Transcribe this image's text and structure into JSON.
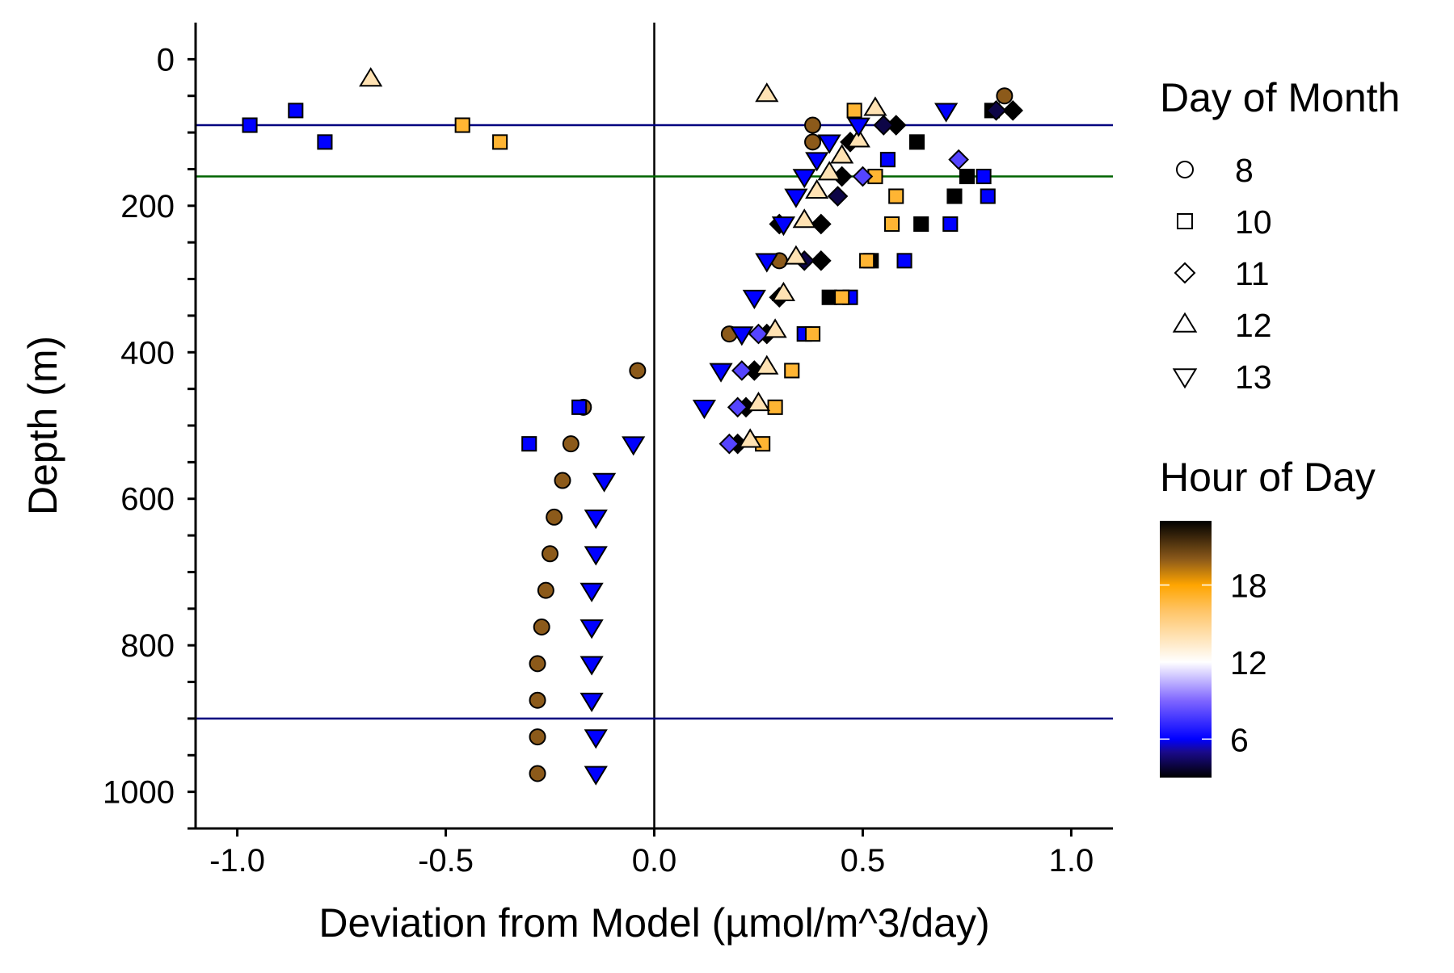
{
  "chart_data": {
    "type": "scatter",
    "xlabel": "Deviation from Model (µmol/m^3/day)",
    "ylabel": "Depth (m)",
    "xlim": [
      -1.1,
      1.1
    ],
    "ylim": [
      1050,
      -50
    ],
    "y_reversed": true,
    "x_ticks": [
      -1.0,
      -0.5,
      0.0,
      0.5,
      1.0
    ],
    "x_tick_labels": [
      "-1.0",
      "-0.5",
      "0.0",
      "0.5",
      "1.0"
    ],
    "y_ticks": [
      0,
      200,
      400,
      600,
      800,
      1000
    ],
    "y_tick_labels": [
      "0",
      "200",
      "400",
      "600",
      "800",
      "1000"
    ],
    "vertical_line": {
      "x": 0.0,
      "color": "#000000"
    },
    "horizontal_lines": [
      {
        "y": 90,
        "color": "#00007f"
      },
      {
        "y": 160,
        "color": "#006400"
      },
      {
        "y": 900,
        "color": "#00007f"
      }
    ],
    "shape_legend": {
      "title": "Day of Month",
      "entries": [
        {
          "label": "8",
          "shape": "circle"
        },
        {
          "label": "10",
          "shape": "square"
        },
        {
          "label": "11",
          "shape": "diamond"
        },
        {
          "label": "12",
          "shape": "triangle-up"
        },
        {
          "label": "13",
          "shape": "triangle-down"
        }
      ]
    },
    "color_legend": {
      "title": "Hour of Day",
      "ticks": [
        {
          "label": "18",
          "value": 18
        },
        {
          "label": "12",
          "value": 12
        },
        {
          "label": "6",
          "value": 6
        }
      ],
      "range": [
        3,
        23
      ],
      "gradient_stops": [
        {
          "value": 3,
          "color": "#000000"
        },
        {
          "value": 5,
          "color": "#1a0a8c"
        },
        {
          "value": 6,
          "color": "#0000ff"
        },
        {
          "value": 9,
          "color": "#7f66ff"
        },
        {
          "value": 12,
          "color": "#ffffff"
        },
        {
          "value": 16,
          "color": "#ffc466"
        },
        {
          "value": 18,
          "color": "#ffa500"
        },
        {
          "value": 20,
          "color": "#8c5a1a"
        },
        {
          "value": 23,
          "color": "#000000"
        }
      ]
    },
    "series": [
      {
        "name": "8",
        "shape": "circle",
        "points": [
          {
            "x": 0.84,
            "y": 50,
            "hour": 20
          },
          {
            "x": 0.38,
            "y": 90,
            "hour": 20
          },
          {
            "x": 0.38,
            "y": 113,
            "hour": 20
          },
          {
            "x": -0.04,
            "y": 425,
            "hour": 20
          },
          {
            "x": -0.17,
            "y": 475,
            "hour": 20
          },
          {
            "x": -0.2,
            "y": 525,
            "hour": 20
          },
          {
            "x": -0.22,
            "y": 575,
            "hour": 20
          },
          {
            "x": -0.24,
            "y": 625,
            "hour": 20
          },
          {
            "x": -0.25,
            "y": 675,
            "hour": 20
          },
          {
            "x": -0.26,
            "y": 725,
            "hour": 20
          },
          {
            "x": -0.27,
            "y": 775,
            "hour": 20
          },
          {
            "x": -0.28,
            "y": 825,
            "hour": 20
          },
          {
            "x": -0.28,
            "y": 875,
            "hour": 20
          },
          {
            "x": -0.28,
            "y": 925,
            "hour": 20
          },
          {
            "x": -0.28,
            "y": 975,
            "hour": 20
          },
          {
            "x": 0.18,
            "y": 375,
            "hour": 20
          },
          {
            "x": 0.3,
            "y": 275,
            "hour": 20
          }
        ]
      },
      {
        "name": "10",
        "shape": "square",
        "points": [
          {
            "x": -0.97,
            "y": 90,
            "hour": 6
          },
          {
            "x": -0.86,
            "y": 70,
            "hour": 6
          },
          {
            "x": -0.79,
            "y": 113,
            "hour": 6
          },
          {
            "x": -0.46,
            "y": 90,
            "hour": 17
          },
          {
            "x": -0.37,
            "y": 113,
            "hour": 17
          },
          {
            "x": 0.48,
            "y": 70,
            "hour": 17
          },
          {
            "x": 0.53,
            "y": 160,
            "hour": 17
          },
          {
            "x": 0.56,
            "y": 137,
            "hour": 6
          },
          {
            "x": 0.58,
            "y": 187,
            "hour": 17
          },
          {
            "x": 0.57,
            "y": 225,
            "hour": 17
          },
          {
            "x": 0.63,
            "y": 113,
            "hour": 23
          },
          {
            "x": 0.64,
            "y": 225,
            "hour": 23
          },
          {
            "x": 0.72,
            "y": 187,
            "hour": 23
          },
          {
            "x": 0.71,
            "y": 225,
            "hour": 6
          },
          {
            "x": 0.75,
            "y": 160,
            "hour": 23
          },
          {
            "x": 0.79,
            "y": 160,
            "hour": 6
          },
          {
            "x": 0.8,
            "y": 187,
            "hour": 6
          },
          {
            "x": 0.81,
            "y": 70,
            "hour": 23
          },
          {
            "x": 0.52,
            "y": 275,
            "hour": 23
          },
          {
            "x": 0.51,
            "y": 275,
            "hour": 17
          },
          {
            "x": 0.6,
            "y": 275,
            "hour": 6
          },
          {
            "x": 0.42,
            "y": 325,
            "hour": 23
          },
          {
            "x": 0.47,
            "y": 325,
            "hour": 6
          },
          {
            "x": 0.45,
            "y": 325,
            "hour": 17
          },
          {
            "x": 0.36,
            "y": 375,
            "hour": 6
          },
          {
            "x": 0.38,
            "y": 375,
            "hour": 17
          },
          {
            "x": 0.33,
            "y": 425,
            "hour": 17
          },
          {
            "x": 0.29,
            "y": 475,
            "hour": 17
          },
          {
            "x": 0.26,
            "y": 525,
            "hour": 17
          },
          {
            "x": -0.18,
            "y": 475,
            "hour": 6
          },
          {
            "x": -0.3,
            "y": 525,
            "hour": 6
          }
        ]
      },
      {
        "name": "11",
        "shape": "diamond",
        "points": [
          {
            "x": 0.86,
            "y": 70,
            "hour": 23
          },
          {
            "x": 0.82,
            "y": 70,
            "hour": 4
          },
          {
            "x": 0.73,
            "y": 137,
            "hour": 8
          },
          {
            "x": 0.58,
            "y": 90,
            "hour": 23
          },
          {
            "x": 0.55,
            "y": 90,
            "hour": 4
          },
          {
            "x": 0.5,
            "y": 160,
            "hour": 8
          },
          {
            "x": 0.47,
            "y": 113,
            "hour": 23
          },
          {
            "x": 0.44,
            "y": 187,
            "hour": 4
          },
          {
            "x": 0.45,
            "y": 160,
            "hour": 23
          },
          {
            "x": 0.4,
            "y": 225,
            "hour": 23
          },
          {
            "x": 0.4,
            "y": 275,
            "hour": 23
          },
          {
            "x": 0.36,
            "y": 275,
            "hour": 4
          },
          {
            "x": 0.3,
            "y": 325,
            "hour": 23
          },
          {
            "x": 0.27,
            "y": 375,
            "hour": 23
          },
          {
            "x": 0.25,
            "y": 375,
            "hour": 8
          },
          {
            "x": 0.24,
            "y": 425,
            "hour": 23
          },
          {
            "x": 0.21,
            "y": 425,
            "hour": 8
          },
          {
            "x": 0.22,
            "y": 475,
            "hour": 23
          },
          {
            "x": 0.2,
            "y": 475,
            "hour": 8
          },
          {
            "x": 0.2,
            "y": 525,
            "hour": 23
          },
          {
            "x": 0.18,
            "y": 525,
            "hour": 8
          },
          {
            "x": 0.3,
            "y": 225,
            "hour": 23
          }
        ]
      },
      {
        "name": "12",
        "shape": "triangle-up",
        "points": [
          {
            "x": -0.68,
            "y": 27,
            "hour": 14
          },
          {
            "x": 0.27,
            "y": 48,
            "hour": 14
          },
          {
            "x": 0.53,
            "y": 67,
            "hour": 14
          },
          {
            "x": 0.49,
            "y": 110,
            "hour": 14
          },
          {
            "x": 0.45,
            "y": 132,
            "hour": 14
          },
          {
            "x": 0.42,
            "y": 155,
            "hour": 14
          },
          {
            "x": 0.39,
            "y": 180,
            "hour": 14
          },
          {
            "x": 0.36,
            "y": 220,
            "hour": 14
          },
          {
            "x": 0.34,
            "y": 270,
            "hour": 14
          },
          {
            "x": 0.31,
            "y": 320,
            "hour": 14
          },
          {
            "x": 0.29,
            "y": 370,
            "hour": 14
          },
          {
            "x": 0.27,
            "y": 420,
            "hour": 14
          },
          {
            "x": 0.25,
            "y": 470,
            "hour": 14
          },
          {
            "x": 0.23,
            "y": 520,
            "hour": 14
          }
        ]
      },
      {
        "name": "13",
        "shape": "triangle-down",
        "points": [
          {
            "x": 0.7,
            "y": 70,
            "hour": 6
          },
          {
            "x": 0.49,
            "y": 90,
            "hour": 6
          },
          {
            "x": 0.42,
            "y": 113,
            "hour": 6
          },
          {
            "x": 0.39,
            "y": 137,
            "hour": 6
          },
          {
            "x": 0.36,
            "y": 160,
            "hour": 6
          },
          {
            "x": 0.34,
            "y": 187,
            "hour": 6
          },
          {
            "x": 0.31,
            "y": 225,
            "hour": 6
          },
          {
            "x": 0.27,
            "y": 275,
            "hour": 6
          },
          {
            "x": 0.24,
            "y": 325,
            "hour": 6
          },
          {
            "x": 0.21,
            "y": 375,
            "hour": 6
          },
          {
            "x": 0.16,
            "y": 425,
            "hour": 6
          },
          {
            "x": 0.12,
            "y": 475,
            "hour": 6
          },
          {
            "x": -0.05,
            "y": 525,
            "hour": 6
          },
          {
            "x": -0.12,
            "y": 575,
            "hour": 6
          },
          {
            "x": -0.14,
            "y": 625,
            "hour": 6
          },
          {
            "x": -0.14,
            "y": 675,
            "hour": 6
          },
          {
            "x": -0.15,
            "y": 725,
            "hour": 6
          },
          {
            "x": -0.15,
            "y": 775,
            "hour": 6
          },
          {
            "x": -0.15,
            "y": 825,
            "hour": 6
          },
          {
            "x": -0.15,
            "y": 875,
            "hour": 6
          },
          {
            "x": -0.14,
            "y": 925,
            "hour": 6
          },
          {
            "x": -0.14,
            "y": 975,
            "hour": 6
          }
        ]
      }
    ]
  }
}
